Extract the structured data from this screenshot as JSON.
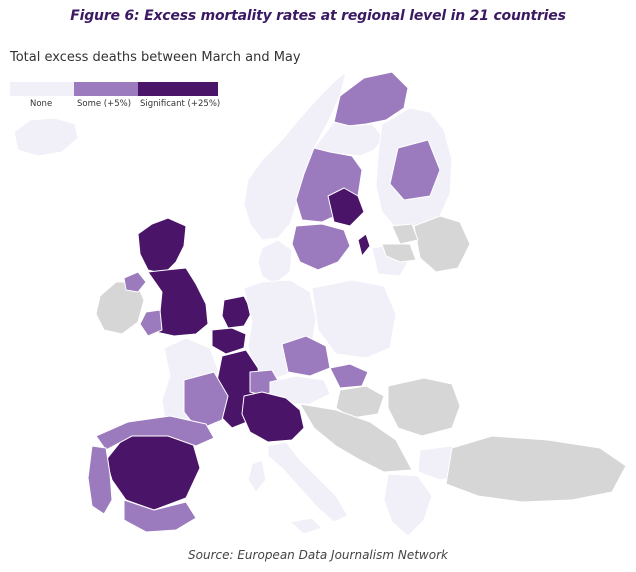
{
  "figure_title": "Figure 6: Excess mortality rates at regional level in 21 countries",
  "map_title": "Total excess deaths between March and May",
  "legend": {
    "none_label": "None",
    "some_label": "Some (+5%)",
    "significant_label": "Significant (+25%)"
  },
  "colors": {
    "none": "#f1eff8",
    "some": "#9b7bbd",
    "significant": "#4a1469",
    "no_data": "#d6d6d6",
    "border": "#ffffff",
    "title": "#3b1a63"
  },
  "source": "Source: European Data Journalism Network",
  "map_data": {
    "type": "choropleth",
    "categories": [
      "None",
      "Some (+5%)",
      "Significant (+25%)"
    ],
    "regions": [
      {
        "area": "Iceland",
        "category": "none"
      },
      {
        "area": "Norway",
        "category": "none"
      },
      {
        "area": "Northern Norway",
        "category": "some"
      },
      {
        "area": "Sweden north",
        "category": "none"
      },
      {
        "area": "Sweden central",
        "category": "some"
      },
      {
        "area": "Stockholm",
        "category": "significant"
      },
      {
        "area": "Sweden south",
        "category": "some"
      },
      {
        "area": "Gotland",
        "category": "significant"
      },
      {
        "area": "Finland",
        "category": "none"
      },
      {
        "area": "Finland central",
        "category": "some"
      },
      {
        "area": "Scotland",
        "category": "significant"
      },
      {
        "area": "England",
        "category": "significant"
      },
      {
        "area": "Wales",
        "category": "some"
      },
      {
        "area": "Ireland",
        "category": "no_data"
      },
      {
        "area": "Northern Ireland",
        "category": "some"
      },
      {
        "area": "Netherlands",
        "category": "significant"
      },
      {
        "area": "Belgium",
        "category": "significant"
      },
      {
        "area": "Denmark",
        "category": "none"
      },
      {
        "area": "Germany",
        "category": "none"
      },
      {
        "area": "Eastern France",
        "category": "significant"
      },
      {
        "area": "Western France",
        "category": "none"
      },
      {
        "area": "Central France",
        "category": "some"
      },
      {
        "area": "Switzerland",
        "category": "some"
      },
      {
        "area": "Czechia",
        "category": "some"
      },
      {
        "area": "Austria",
        "category": "none"
      },
      {
        "area": "Poland",
        "category": "none"
      },
      {
        "area": "Lithuania",
        "category": "none"
      },
      {
        "area": "Northern Italy",
        "category": "significant"
      },
      {
        "area": "Southern Italy",
        "category": "none"
      },
      {
        "area": "Sardinia",
        "category": "none"
      },
      {
        "area": "Sicily",
        "category": "none"
      },
      {
        "area": "Central Spain",
        "category": "significant"
      },
      {
        "area": "Northern Spain",
        "category": "some"
      },
      {
        "area": "Southern Spain",
        "category": "some"
      },
      {
        "area": "Portugal",
        "category": "some"
      },
      {
        "area": "Slovakia",
        "category": "some"
      },
      {
        "area": "Bulgaria",
        "category": "none"
      },
      {
        "area": "Greece",
        "category": "none"
      },
      {
        "area": "Hungary",
        "category": "no_data"
      },
      {
        "area": "Romania",
        "category": "no_data"
      },
      {
        "area": "Balkans",
        "category": "no_data"
      },
      {
        "area": "Turkey",
        "category": "no_data"
      },
      {
        "area": "Russia",
        "category": "no_data"
      },
      {
        "area": "Estonia",
        "category": "no_data"
      },
      {
        "area": "Latvia",
        "category": "no_data"
      }
    ]
  }
}
